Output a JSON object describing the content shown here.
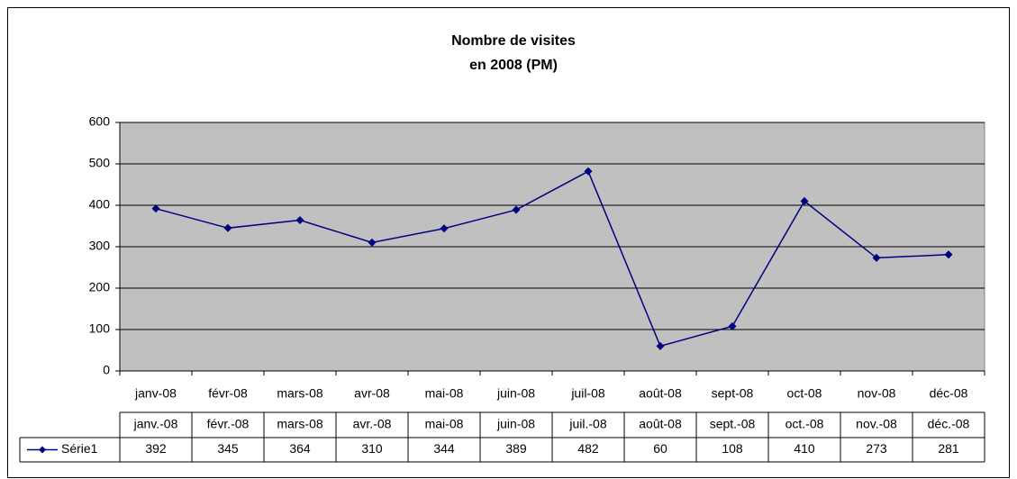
{
  "chart_data": {
    "type": "line",
    "title": [
      "Nombre de visites",
      "en 2008  (PM)"
    ],
    "categories": [
      "janv-08",
      "févr-08",
      "mars-08",
      "avr-08",
      "mai-08",
      "juin-08",
      "juil-08",
      "août-08",
      "sept-08",
      "oct-08",
      "nov-08",
      "déc-08"
    ],
    "series": [
      {
        "name": "Série1",
        "color": "#000080",
        "values": [
          392,
          345,
          364,
          310,
          344,
          389,
          482,
          60,
          108,
          410,
          273,
          281
        ]
      }
    ],
    "ylim": [
      0,
      600
    ],
    "yticks": [
      0,
      100,
      200,
      300,
      400,
      500,
      600
    ],
    "grid": true,
    "plot_background": "#c0c0c0",
    "data_table": {
      "header": [
        "janv.-08",
        "févr.-08",
        "mars-08",
        "avr.-08",
        "mai-08",
        "juin-08",
        "juil.-08",
        "août-08",
        "sept.-08",
        "oct.-08",
        "nov.-08",
        "déc.-08"
      ]
    }
  }
}
